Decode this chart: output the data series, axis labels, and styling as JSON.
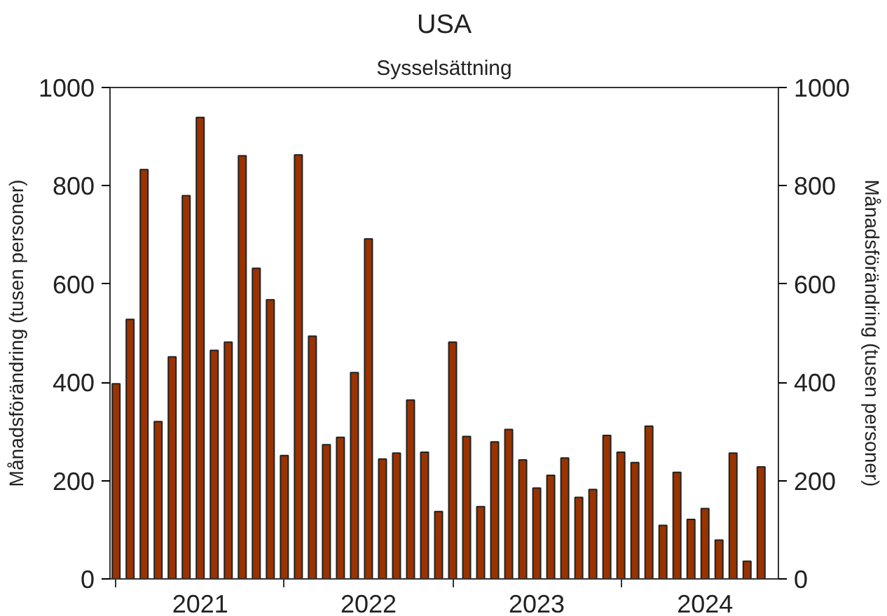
{
  "chart_data": {
    "type": "bar",
    "title": "USA",
    "subtitle": "Sysselsättning",
    "ylabel": "Månadsförändring (tusen personer)",
    "y2label": "Månadsförändring (tusen personer)",
    "x": [
      "2021-01",
      "2021-02",
      "2021-03",
      "2021-04",
      "2021-05",
      "2021-06",
      "2021-07",
      "2021-08",
      "2021-09",
      "2021-10",
      "2021-11",
      "2021-12",
      "2022-01",
      "2022-02",
      "2022-03",
      "2022-04",
      "2022-05",
      "2022-06",
      "2022-07",
      "2022-08",
      "2022-09",
      "2022-10",
      "2022-11",
      "2022-12",
      "2023-01",
      "2023-02",
      "2023-03",
      "2023-04",
      "2023-05",
      "2023-06",
      "2023-07",
      "2023-08",
      "2023-09",
      "2023-10",
      "2023-11",
      "2023-12",
      "2024-01",
      "2024-02",
      "2024-03",
      "2024-04",
      "2024-05",
      "2024-06",
      "2024-07",
      "2024-08",
      "2024-09",
      "2024-10",
      "2024-11"
    ],
    "values": [
      397,
      528,
      833,
      320,
      452,
      780,
      939,
      465,
      482,
      861,
      632,
      568,
      251,
      863,
      494,
      273,
      288,
      420,
      692,
      244,
      256,
      364,
      258,
      137,
      482,
      290,
      147,
      279,
      304,
      242,
      185,
      211,
      246,
      166,
      182,
      292,
      258,
      237,
      311,
      109,
      217,
      121,
      143,
      79,
      256,
      36,
      228
    ],
    "color": "#993300",
    "xlim": [
      "2020-12-18",
      "2024-12-08"
    ],
    "xticks": [
      {
        "value": "2021-01-01",
        "label": null
      },
      {
        "value": "2021-07-01",
        "label": "2021"
      },
      {
        "value": "2022-01-01",
        "label": null
      },
      {
        "value": "2022-07-01",
        "label": "2022"
      },
      {
        "value": "2023-01-01",
        "label": null
      },
      {
        "value": "2023-07-01",
        "label": "2023"
      },
      {
        "value": "2024-01-01",
        "label": null
      },
      {
        "value": "2024-07-01",
        "label": "2024"
      }
    ],
    "ylim": [
      0,
      1000
    ],
    "yticks": [
      0,
      200,
      400,
      600,
      800,
      1000
    ],
    "y2lim": [
      0,
      1000
    ],
    "y2ticks": [
      0,
      200,
      400,
      600,
      800,
      1000
    ]
  }
}
